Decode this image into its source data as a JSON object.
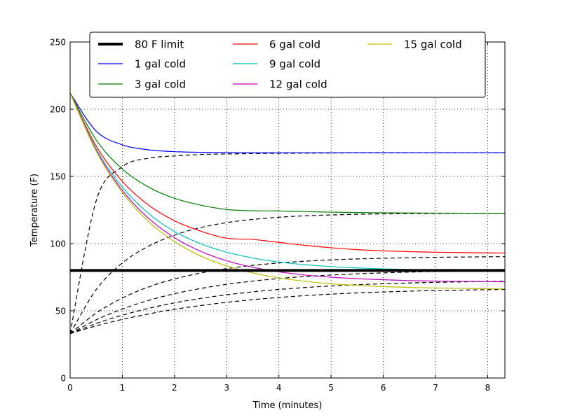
{
  "chart_data": {
    "type": "line",
    "xlabel": "Time (minutes)",
    "ylabel": "Temperature (F)",
    "xlim": [
      0,
      8.33
    ],
    "ylim": [
      0,
      250
    ],
    "xticks": [
      0,
      1,
      2,
      3,
      4,
      5,
      6,
      7,
      8
    ],
    "yticks": [
      0,
      50,
      100,
      150,
      200,
      250
    ],
    "xtick_labels": [
      "0",
      "1",
      "2",
      "3",
      "4",
      "5",
      "6",
      "7",
      "8"
    ],
    "ytick_labels": [
      "0",
      "50",
      "100",
      "150",
      "200",
      "250"
    ],
    "grid": true,
    "legend_position": "top-center",
    "limit_line": {
      "name": "80 F limit",
      "value": 80,
      "color": "#000000"
    },
    "x": [
      0,
      0.5,
      1,
      1.5,
      2,
      2.5,
      3,
      3.5,
      4,
      4.5,
      5,
      5.5,
      6,
      6.5,
      7,
      7.5,
      8,
      8.33
    ],
    "series": [
      {
        "name": "1 gal cold",
        "color": "#0000ff",
        "values": [
          212,
          183.7,
          173.5,
          169.8,
          168.4,
          167.9,
          167.7,
          167.6,
          167.6,
          167.6,
          167.6,
          167.6,
          167.6,
          167.6,
          167.6,
          167.6,
          167.6,
          167.6
        ]
      },
      {
        "name": "3 gal cold",
        "color": "#008000",
        "values": [
          212,
          177.1,
          155.5,
          142.1,
          133.7,
          128.6,
          125.4,
          124.4,
          124.3,
          123.8,
          123.4,
          123.1,
          122.9,
          122.8,
          122.7,
          122.6,
          122.6,
          122.6
        ]
      },
      {
        "name": "6 gal cold",
        "color": "#ff0000",
        "values": [
          212,
          172.5,
          146.3,
          128.7,
          117.0,
          109.3,
          104.0,
          103.1,
          100.9,
          98.7,
          96.9,
          95.5,
          94.6,
          94.0,
          93.6,
          93.3,
          93.1,
          93.0
        ]
      },
      {
        "name": "9 gal cold",
        "color": "#00bfbf",
        "values": [
          212,
          170.5,
          142.0,
          122.5,
          109.0,
          99.9,
          93.6,
          89.3,
          86.3,
          84.3,
          82.9,
          81.9,
          81.2,
          80.8,
          80.4,
          80.1,
          79.9,
          79.8
        ]
      },
      {
        "name": "12 gal cold",
        "color": "#bf00bf",
        "values": [
          212,
          169.4,
          139.6,
          118.9,
          104.4,
          94.3,
          87.2,
          82.4,
          79.0,
          76.6,
          75.0,
          73.9,
          73.1,
          72.5,
          72.1,
          71.9,
          71.7,
          71.6
        ]
      },
      {
        "name": "15 gal cold",
        "color": "#bfbf00",
        "values": [
          212,
          168.7,
          138.1,
          116.5,
          101.4,
          90.8,
          83.4,
          78.2,
          74.5,
          71.9,
          70.1,
          68.9,
          68.0,
          67.4,
          67.0,
          66.7,
          66.4,
          66.3
        ]
      }
    ],
    "cold_curves": {
      "color": "#000000",
      "values": [
        [
          33,
          132.0,
          157.2,
          163.5,
          165.2,
          166.3,
          166.7,
          167.0,
          167.2,
          167.3,
          167.4,
          167.5,
          167.5,
          167.6,
          167.6,
          167.6,
          167.6,
          167.6
        ],
        [
          33,
          65.8,
          85.6,
          98.0,
          106.3,
          111.9,
          115.6,
          118.0,
          119.6,
          120.7,
          121.3,
          121.8,
          122.1,
          122.3,
          122.4,
          122.5,
          122.5,
          122.6
        ],
        [
          33,
          48.3,
          59.5,
          67.7,
          73.7,
          78.1,
          81.4,
          83.8,
          85.6,
          86.9,
          87.9,
          88.6,
          89.1,
          89.5,
          89.8,
          90.0,
          90.2,
          90.3
        ],
        [
          33,
          43.3,
          51.3,
          57.7,
          62.7,
          66.6,
          69.7,
          72.1,
          74.0,
          75.5,
          76.6,
          77.5,
          78.2,
          78.8,
          79.2,
          79.5,
          79.8,
          79.9
        ],
        [
          33,
          40.6,
          46.7,
          51.8,
          55.9,
          59.2,
          61.9,
          64.1,
          65.9,
          67.3,
          68.5,
          69.4,
          70.1,
          70.7,
          71.2,
          71.5,
          71.8,
          72.0
        ],
        [
          33,
          38.8,
          43.6,
          47.6,
          51.1,
          53.9,
          56.3,
          58.3,
          59.9,
          61.3,
          62.4,
          63.3,
          64.0,
          64.6,
          65.1,
          65.4,
          65.7,
          65.9
        ]
      ]
    }
  }
}
